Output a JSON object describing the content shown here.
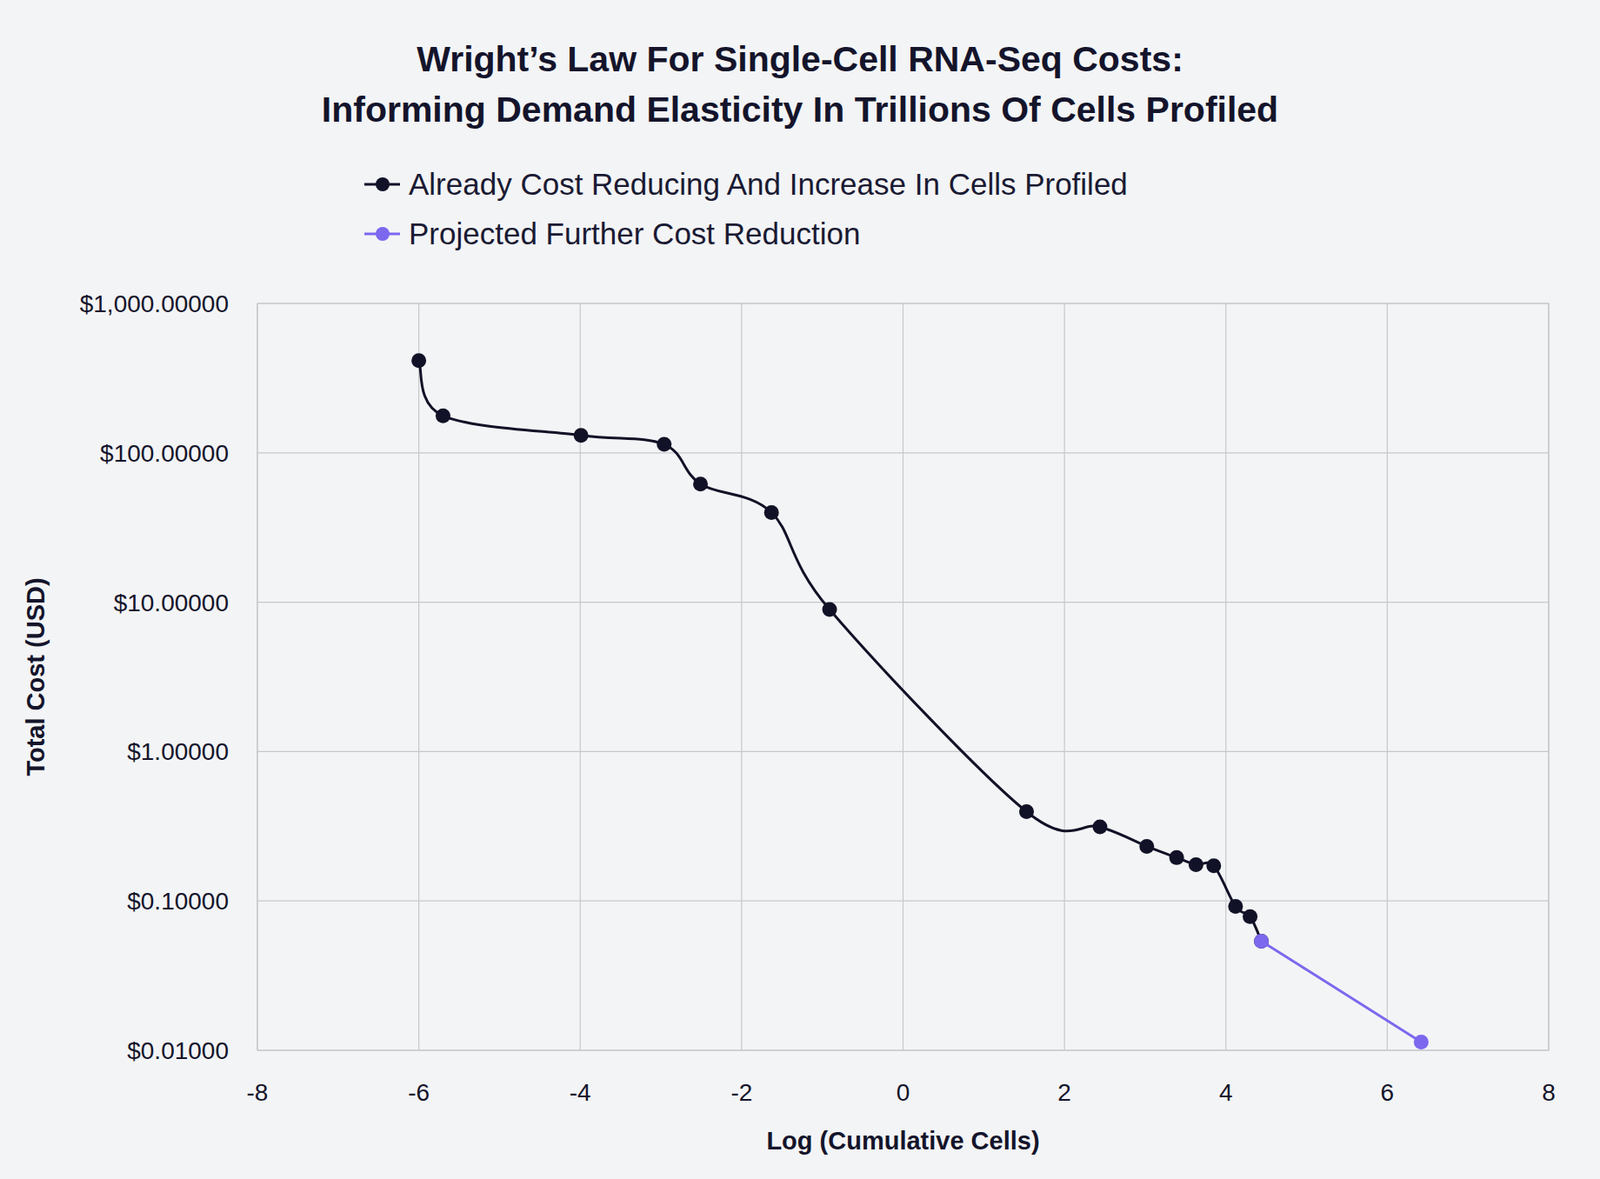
{
  "chart_data": {
    "type": "line",
    "title": [
      "Wright’s Law For Single-Cell RNA-Seq Costs:",
      "Informing Demand Elasticity In Trillions Of Cells Profiled"
    ],
    "x_label": "Log (Cumulative Cells)",
    "y_label": "Total Cost (USD)",
    "log": "y",
    "grid": true,
    "legend": "top",
    "xlim": [
      -8,
      8
    ],
    "xticks": [
      -8,
      -6,
      -4,
      -2,
      0,
      2,
      4,
      6,
      8
    ],
    "ylim": [
      0.01,
      1000
    ],
    "yticks": [
      {
        "value": 0.01,
        "label": "$0.01000"
      },
      {
        "value": 0.1,
        "label": "$0.10000"
      },
      {
        "value": 1,
        "label": "$1.00000"
      },
      {
        "value": 10,
        "label": "$10.00000"
      },
      {
        "value": 100,
        "label": "$100.00000"
      },
      {
        "value": 1000,
        "label": "$1,000.00000"
      }
    ],
    "series": [
      {
        "name": "Already Cost Reducing And Increase In Cells Profiled",
        "color": "#111127",
        "marker": "circle",
        "line_style": "smooth",
        "x": [
          -6.0,
          -5.7,
          -3.99,
          -2.96,
          -2.51,
          -1.63,
          -0.91,
          1.53,
          2.44,
          3.02,
          3.39,
          3.63,
          3.85,
          4.12,
          4.3,
          4.44
        ],
        "values": [
          414,
          177,
          131,
          114,
          61.8,
          39.8,
          8.93,
          0.396,
          0.313,
          0.232,
          0.195,
          0.175,
          0.172,
          0.0918,
          0.0785,
          0.0538
        ]
      },
      {
        "name": "Projected Further Cost Reduction",
        "color": "#7b68ee",
        "marker": "circle",
        "line_style": "solid",
        "x": [
          4.44,
          6.42
        ],
        "values": [
          0.0538,
          0.01135
        ]
      }
    ]
  }
}
